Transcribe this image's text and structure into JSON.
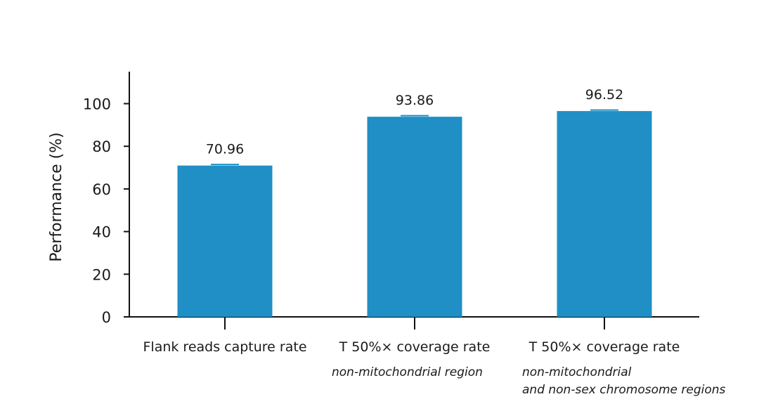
{
  "chart_data": {
    "type": "bar",
    "ylabel": "Performance (%)",
    "ylim": [
      0,
      115
    ],
    "yticks": [
      0,
      20,
      40,
      60,
      80,
      100
    ],
    "grid": false,
    "bar_color": "#1f8fc6",
    "categories": [
      "Flank reads capture rate",
      "T 50%× coverage rate",
      "T 50%× coverage rate"
    ],
    "subcategories": [
      [],
      [
        "non-mitochondrial region"
      ],
      [
        "non-mitochondrial",
        "and non-sex chromosome regions"
      ]
    ],
    "values": [
      70.96,
      93.86,
      96.52
    ],
    "value_labels": [
      "70.96",
      "93.86",
      "96.52"
    ]
  }
}
